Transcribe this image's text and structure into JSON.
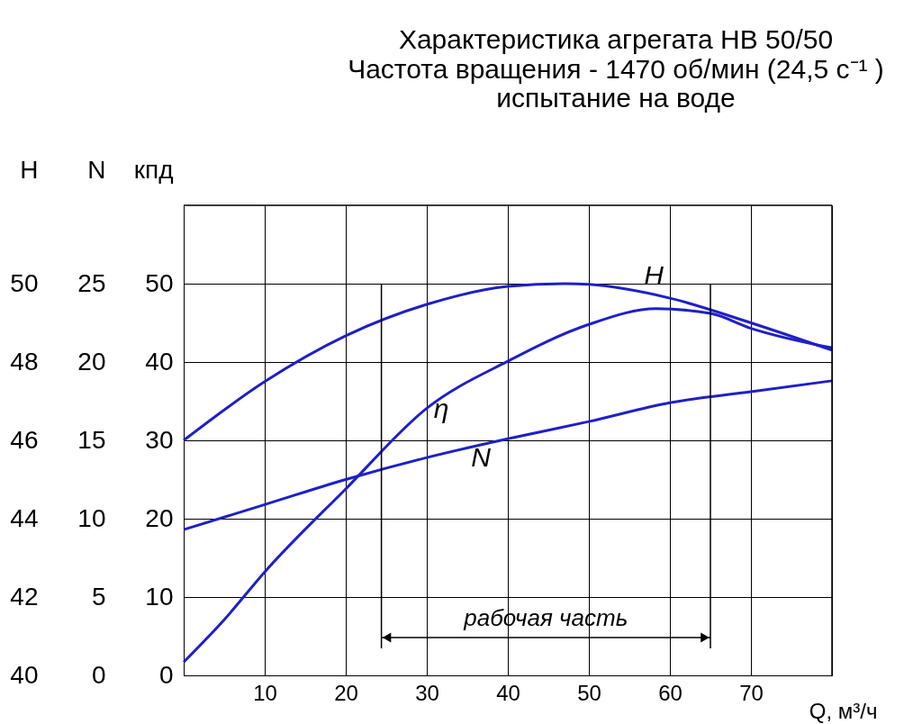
{
  "chart_data": {
    "type": "line",
    "title": "Характеристика агрегата НВ 50/50",
    "subtitle": [
      "Частота вращения - 1470 об/мин (24,5 с⁻¹ )",
      "испытание на воде"
    ],
    "xlabel": "Q, м³/ч",
    "ylabel": "кпд",
    "y2label": "N",
    "y3label": "H",
    "xlim": [
      0,
      80
    ],
    "xticks": [
      {
        "value": 0,
        "label": null
      },
      10,
      20,
      30,
      40,
      50,
      60,
      70,
      {
        "value": 80,
        "label": null
      }
    ],
    "ylim": [
      0,
      60
    ],
    "yticks": [
      0,
      10,
      20,
      30,
      40,
      50
    ],
    "y2lim": [
      0,
      30
    ],
    "y2ticks": [
      0,
      5,
      10,
      15,
      20,
      25
    ],
    "y3lim": [
      40,
      52
    ],
    "y3ticks": [
      40,
      42,
      44,
      46,
      48,
      50
    ],
    "grid": true,
    "legend": false,
    "ref_lines": [
      {
        "axis": "x",
        "value": 24.4
      },
      {
        "axis": "x",
        "value": 65
      }
    ],
    "annotations": [
      "рабочая часть"
    ],
    "series": [
      {
        "name": "H",
        "color": "#1f1fc8",
        "axis": "y3",
        "x": [
          0,
          10,
          20,
          30,
          40,
          47,
          50,
          60,
          70,
          80
        ],
        "values": [
          46,
          47.5,
          48.67,
          49.47,
          49.93,
          50,
          49.98,
          49.63,
          49.0,
          48.3
        ]
      },
      {
        "name": "N",
        "color": "#1f1fc8",
        "axis": "y2",
        "x": [
          0,
          10,
          20,
          30,
          40,
          50,
          60,
          70,
          80
        ],
        "values": [
          9.3,
          10.9,
          12.5,
          13.9,
          15.1,
          16.2,
          17.4,
          18.1,
          18.8
        ]
      },
      {
        "name": "η",
        "color": "#1f1fc8",
        "x": [
          0,
          5,
          10,
          20,
          30,
          40,
          50,
          58.3,
          65,
          70,
          80
        ],
        "values": [
          1.7,
          7.1,
          13.2,
          23.8,
          34.1,
          40.1,
          44.8,
          46.8,
          46.2,
          44.3,
          41.8
        ]
      }
    ]
  }
}
